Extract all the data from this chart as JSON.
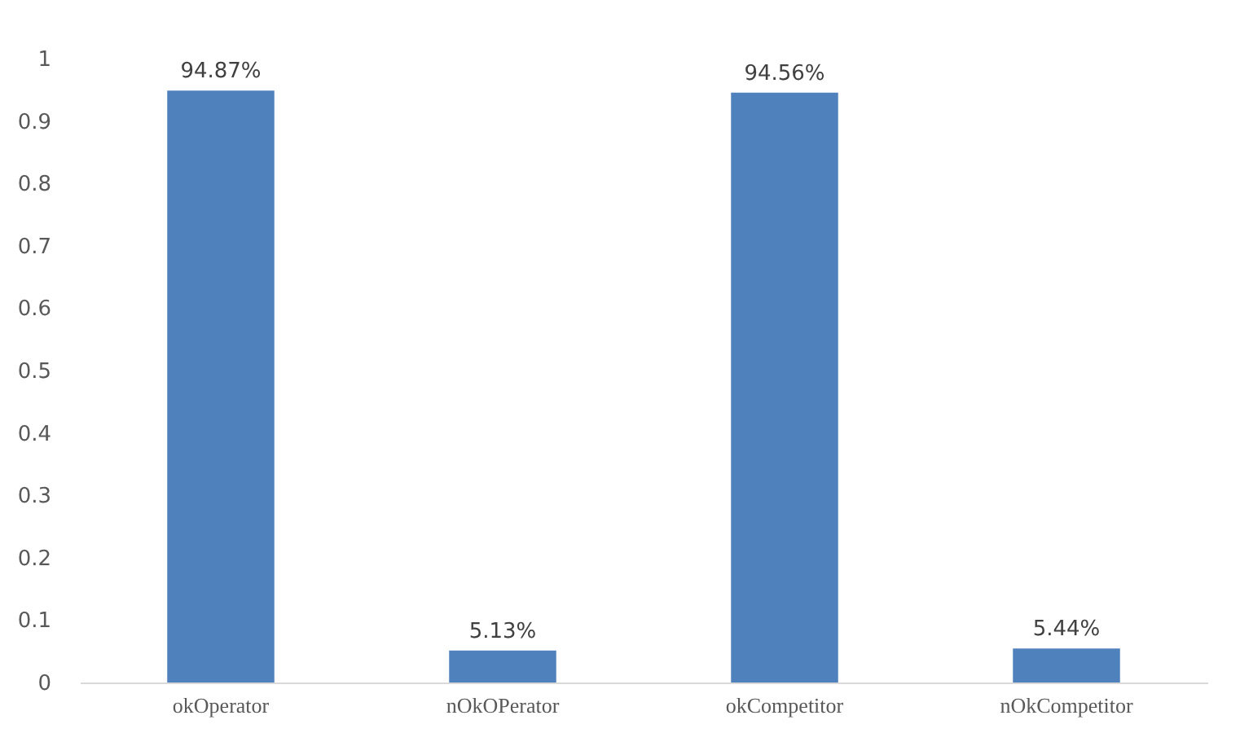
{
  "chart_data": {
    "type": "bar",
    "categories": [
      "okOperator",
      "nOkOPerator",
      "okCompetitor",
      "nOkCompetitor"
    ],
    "values": [
      0.9487,
      0.0513,
      0.9456,
      0.0544
    ],
    "color": "#4f81bd",
    "value_labels": [
      "94.87%",
      "5.13%",
      "94.56%",
      "5.44%"
    ],
    "ylim": [
      0,
      1
    ],
    "yticks": [
      0,
      0.1,
      0.2,
      0.3,
      0.4,
      0.5,
      0.6,
      0.7,
      0.8,
      0.9,
      1
    ],
    "grid": false
  }
}
